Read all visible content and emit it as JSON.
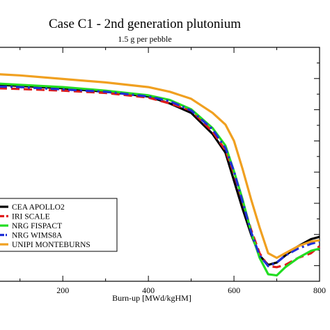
{
  "chart_data": {
    "type": "line",
    "title": "Case C1 - 2nd generation plutonium",
    "subtitle": "1.5 g per pebble",
    "xlabel": "Burn-up  [MWd/kgHM]",
    "ylabel": "",
    "xlim": [
      50,
      800
    ],
    "ylim": [
      0,
      1
    ],
    "xticks": [
      200,
      400,
      600,
      800
    ],
    "grid": false,
    "legend_position": "bottom-left",
    "series": [
      {
        "name": "CEA  APOLLO2",
        "color": "#000000",
        "dash": "solid",
        "points": [
          [
            50,
            0.84
          ],
          [
            100,
            0.835
          ],
          [
            200,
            0.825
          ],
          [
            300,
            0.81
          ],
          [
            400,
            0.79
          ],
          [
            450,
            0.76
          ],
          [
            500,
            0.72
          ],
          [
            550,
            0.63
          ],
          [
            580,
            0.55
          ],
          [
            600,
            0.43
          ],
          [
            620,
            0.31
          ],
          [
            640,
            0.2
          ],
          [
            660,
            0.11
          ],
          [
            680,
            0.07
          ],
          [
            700,
            0.08
          ],
          [
            720,
            0.11
          ],
          [
            750,
            0.15
          ],
          [
            780,
            0.18
          ],
          [
            800,
            0.19
          ]
        ]
      },
      {
        "name": "IRI  SCALE",
        "color": "#e01b1b",
        "dash": "dashed",
        "points": [
          [
            50,
            0.825
          ],
          [
            100,
            0.822
          ],
          [
            200,
            0.815
          ],
          [
            300,
            0.805
          ],
          [
            400,
            0.785
          ],
          [
            450,
            0.76
          ],
          [
            500,
            0.73
          ],
          [
            550,
            0.64
          ],
          [
            580,
            0.56
          ],
          [
            600,
            0.46
          ],
          [
            620,
            0.34
          ],
          [
            640,
            0.22
          ],
          [
            660,
            0.12
          ],
          [
            680,
            0.065
          ],
          [
            700,
            0.06
          ],
          [
            720,
            0.07
          ],
          [
            750,
            0.1
          ],
          [
            780,
            0.12
          ],
          [
            800,
            0.15
          ]
        ]
      },
      {
        "name": "NRG  FISPACT",
        "color": "#22dd22",
        "dash": "solid",
        "points": [
          [
            50,
            0.845
          ],
          [
            100,
            0.84
          ],
          [
            200,
            0.83
          ],
          [
            300,
            0.815
          ],
          [
            400,
            0.795
          ],
          [
            450,
            0.775
          ],
          [
            500,
            0.735
          ],
          [
            550,
            0.655
          ],
          [
            580,
            0.58
          ],
          [
            600,
            0.47
          ],
          [
            620,
            0.35
          ],
          [
            640,
            0.21
          ],
          [
            660,
            0.1
          ],
          [
            680,
            0.03
          ],
          [
            700,
            0.025
          ],
          [
            720,
            0.06
          ],
          [
            750,
            0.1
          ],
          [
            780,
            0.13
          ],
          [
            800,
            0.14
          ]
        ]
      },
      {
        "name": "NRG  WIMS8A",
        "color": "#1f2fd6",
        "dash": "dashdot",
        "points": [
          [
            50,
            0.832
          ],
          [
            100,
            0.83
          ],
          [
            200,
            0.82
          ],
          [
            300,
            0.81
          ],
          [
            400,
            0.79
          ],
          [
            450,
            0.77
          ],
          [
            500,
            0.73
          ],
          [
            550,
            0.65
          ],
          [
            580,
            0.57
          ],
          [
            600,
            0.47
          ],
          [
            620,
            0.34
          ],
          [
            640,
            0.21
          ],
          [
            660,
            0.11
          ],
          [
            680,
            0.065
          ],
          [
            700,
            0.08
          ],
          [
            720,
            0.11
          ],
          [
            750,
            0.14
          ],
          [
            780,
            0.16
          ],
          [
            800,
            0.17
          ]
        ]
      },
      {
        "name": "UNIPI  MONTEBURNS",
        "color": "#f0a020",
        "dash": "solid",
        "points": [
          [
            50,
            0.885
          ],
          [
            100,
            0.88
          ],
          [
            200,
            0.865
          ],
          [
            300,
            0.85
          ],
          [
            400,
            0.83
          ],
          [
            450,
            0.81
          ],
          [
            500,
            0.78
          ],
          [
            550,
            0.72
          ],
          [
            580,
            0.67
          ],
          [
            600,
            0.6
          ],
          [
            620,
            0.48
          ],
          [
            640,
            0.35
          ],
          [
            660,
            0.23
          ],
          [
            680,
            0.12
          ],
          [
            700,
            0.1
          ],
          [
            720,
            0.12
          ],
          [
            750,
            0.15
          ],
          [
            780,
            0.17
          ],
          [
            800,
            0.175
          ]
        ]
      }
    ]
  }
}
